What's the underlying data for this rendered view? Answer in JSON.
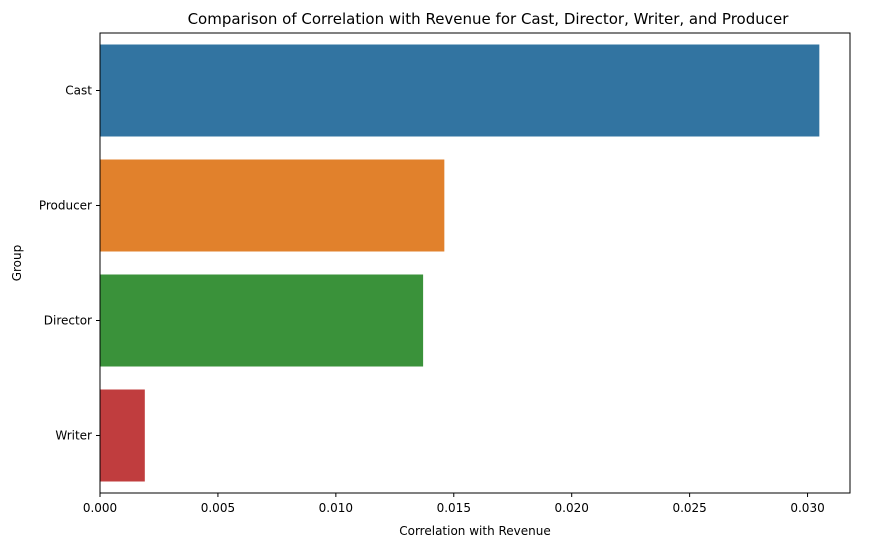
{
  "chart_data": {
    "type": "bar",
    "orientation": "horizontal",
    "title": "Comparison of Correlation with Revenue for Cast, Director, Writer, and Producer",
    "xlabel": "Correlation with Revenue",
    "ylabel": "Group",
    "categories": [
      "Cast",
      "Producer",
      "Director",
      "Writer"
    ],
    "values": [
      0.0305,
      0.0146,
      0.0137,
      0.0019
    ],
    "colors": [
      "#3274a1",
      "#e1812c",
      "#3a923a",
      "#c03d3e"
    ],
    "xlim": [
      0,
      0.0318
    ],
    "xticks": [
      "0.000",
      "0.005",
      "0.010",
      "0.015",
      "0.020",
      "0.025",
      "0.030"
    ],
    "xtick_values": [
      0,
      0.005,
      0.01,
      0.015,
      0.02,
      0.025,
      0.03
    ],
    "grid": false,
    "legend": "none"
  }
}
